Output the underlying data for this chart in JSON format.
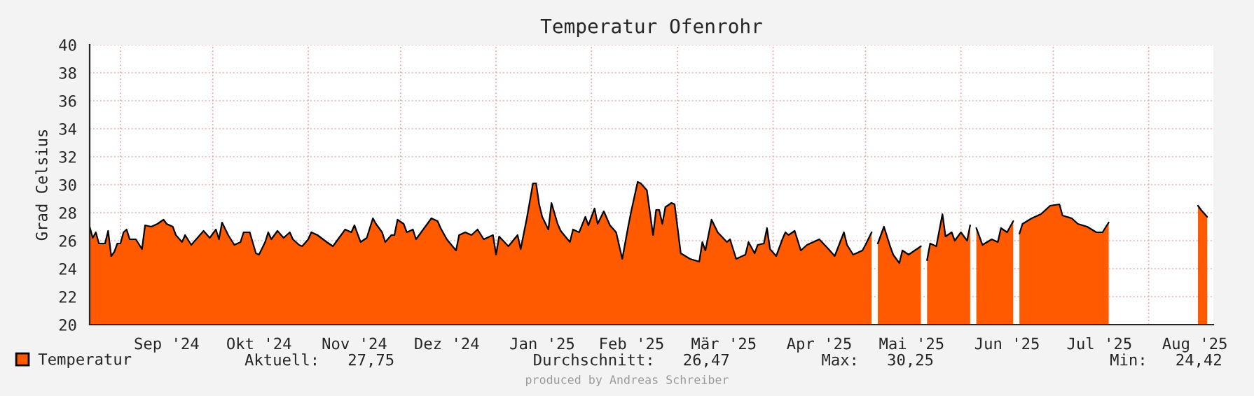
{
  "chart_data": {
    "type": "area",
    "title": "Temperatur Ofenrohr",
    "ylabel": "Grad Celsius",
    "x": [
      "2024-08-22",
      "2024-08-23",
      "2024-08-24",
      "2024-08-25",
      "2024-08-27",
      "2024-08-28",
      "2024-08-29",
      "2024-08-30",
      "2024-08-31",
      "2024-09-01",
      "2024-09-02",
      "2024-09-03",
      "2024-09-04",
      "2024-09-06",
      "2024-09-08",
      "2024-09-09",
      "2024-09-11",
      "2024-09-13",
      "2024-09-15",
      "2024-09-16",
      "2024-09-18",
      "2024-09-19",
      "2024-09-21",
      "2024-09-22",
      "2024-09-24",
      "2024-09-26",
      "2024-09-28",
      "2024-09-30",
      "2024-10-02",
      "2024-10-03",
      "2024-10-04",
      "2024-10-06",
      "2024-10-08",
      "2024-10-10",
      "2024-10-11",
      "2024-10-13",
      "2024-10-15",
      "2024-10-16",
      "2024-10-18",
      "2024-10-19",
      "2024-10-20",
      "2024-10-22",
      "2024-10-24",
      "2024-10-26",
      "2024-10-27",
      "2024-10-29",
      "2024-10-30",
      "2024-11-01",
      "2024-11-02",
      "2024-11-04",
      "2024-11-07",
      "2024-11-09",
      "2024-11-11",
      "2024-11-13",
      "2024-11-15",
      "2024-11-16",
      "2024-11-18",
      "2024-11-20",
      "2024-11-22",
      "2024-11-23",
      "2024-11-25",
      "2024-11-26",
      "2024-11-28",
      "2024-11-29",
      "2024-11-30",
      "2024-12-02",
      "2024-12-03",
      "2024-12-05",
      "2024-12-06",
      "2024-12-08",
      "2024-12-11",
      "2024-12-13",
      "2024-12-14",
      "2024-12-16",
      "2024-12-19",
      "2024-12-20",
      "2024-12-22",
      "2024-12-24",
      "2024-12-26",
      "2024-12-28",
      "2024-12-31",
      "2025-01-01",
      "2025-01-02",
      "2025-01-05",
      "2025-01-08",
      "2025-01-09",
      "2025-01-11",
      "2025-01-13",
      "2025-01-14",
      "2025-01-15",
      "2025-01-16",
      "2025-01-18",
      "2025-01-19",
      "2025-01-21",
      "2025-01-22",
      "2025-01-25",
      "2025-01-26",
      "2025-01-28",
      "2025-01-30",
      "2025-01-31",
      "2025-02-02",
      "2025-02-03",
      "2025-02-05",
      "2025-02-07",
      "2025-02-09",
      "2025-02-11",
      "2025-02-13",
      "2025-02-14",
      "2025-02-16",
      "2025-02-17",
      "2025-02-19",
      "2025-02-21",
      "2025-02-22",
      "2025-02-23",
      "2025-02-24",
      "2025-02-25",
      "2025-02-27",
      "2025-02-28",
      "2025-03-02",
      "2025-03-05",
      "2025-03-08",
      "2025-03-09",
      "2025-03-10",
      "2025-03-12",
      "2025-03-14",
      "2025-03-17",
      "2025-03-18",
      "2025-03-20",
      "2025-03-23",
      "2025-03-24",
      "2025-03-26",
      "2025-03-27",
      "2025-03-29",
      "2025-03-30",
      "2025-03-31",
      "2025-04-02",
      "2025-04-04",
      "2025-04-05",
      "2025-04-06",
      "2025-04-08",
      "2025-04-10",
      "2025-04-12",
      "2025-04-16",
      "2025-04-19",
      "2025-04-21",
      "2025-04-24",
      "2025-04-25",
      "2025-04-27",
      "2025-04-30",
      "2025-05-01",
      "2025-05-03",
      "2025-05-04",
      "2025-05-05",
      "2025-05-07",
      "2025-05-09",
      "2025-05-10",
      "2025-05-12",
      "2025-05-13",
      "2025-05-15",
      "2025-05-17",
      "2025-05-19",
      "2025-05-20",
      "2025-05-21",
      "2025-05-22",
      "2025-05-24",
      "2025-05-26",
      "2025-05-27",
      "2025-05-29",
      "2025-05-30",
      "2025-06-01",
      "2025-06-03",
      "2025-06-04",
      "2025-06-05",
      "2025-06-06",
      "2025-06-08",
      "2025-06-11",
      "2025-06-13",
      "2025-06-14",
      "2025-06-16",
      "2025-06-18",
      "2025-06-19",
      "2025-06-20",
      "2025-06-21",
      "2025-06-24",
      "2025-06-27",
      "2025-06-30",
      "2025-07-03",
      "2025-07-04",
      "2025-07-07",
      "2025-07-09",
      "2025-07-12",
      "2025-07-15",
      "2025-07-17",
      "2025-07-19",
      "2025-07-21",
      "2025-08-17",
      "2025-08-18",
      "2025-08-20"
    ],
    "series": [
      {
        "name": "Temperatur",
        "color": "#ff5a00",
        "values": [
          27.0,
          26.2,
          26.6,
          25.8,
          25.8,
          26.7,
          24.9,
          25.2,
          25.8,
          25.8,
          26.6,
          26.8,
          26.1,
          26.1,
          25.4,
          27.1,
          27.0,
          27.2,
          27.5,
          27.2,
          27.0,
          26.4,
          25.9,
          26.4,
          25.7,
          26.2,
          26.7,
          26.2,
          26.8,
          26.1,
          27.3,
          26.4,
          25.7,
          25.9,
          26.6,
          26.6,
          25.1,
          25.0,
          25.9,
          26.6,
          26.1,
          26.7,
          26.2,
          26.6,
          26.1,
          25.7,
          25.6,
          26.1,
          26.6,
          26.4,
          25.9,
          25.6,
          26.2,
          26.8,
          26.6,
          27.1,
          25.9,
          26.2,
          27.6,
          27.2,
          26.6,
          25.9,
          26.4,
          26.4,
          27.5,
          27.2,
          26.6,
          26.8,
          26.1,
          26.7,
          27.6,
          27.4,
          26.9,
          26.1,
          25.3,
          26.4,
          26.6,
          26.4,
          26.8,
          26.1,
          26.4,
          25.0,
          26.3,
          25.6,
          26.4,
          25.4,
          27.6,
          30.1,
          30.1,
          28.6,
          27.7,
          26.8,
          28.7,
          27.2,
          26.7,
          25.9,
          26.8,
          26.6,
          27.7,
          27.1,
          28.3,
          27.2,
          28.1,
          27.1,
          26.6,
          24.7,
          27.1,
          28.2,
          30.2,
          30.1,
          29.6,
          26.4,
          28.2,
          28.2,
          27.2,
          28.4,
          28.7,
          28.6,
          25.1,
          24.7,
          24.5,
          25.9,
          25.3,
          27.5,
          26.6,
          25.9,
          26.1,
          24.7,
          25.0,
          25.9,
          25.1,
          25.7,
          25.8,
          26.9,
          25.4,
          24.9,
          26.1,
          26.6,
          26.4,
          26.7,
          25.3,
          25.7,
          26.1,
          25.4,
          24.9,
          26.6,
          25.7,
          25.0,
          25.3,
          25.7,
          26.6,
          null,
          25.8,
          27.0,
          25.6,
          25.0,
          24.4,
          25.3,
          25.0,
          25.3,
          25.6,
          null,
          24.6,
          25.8,
          25.6,
          27.9,
          26.3,
          26.6,
          26.0,
          26.6,
          26.0,
          27.1,
          null,
          26.9,
          25.7,
          26.1,
          25.9,
          26.9,
          26.6,
          27.4,
          null,
          26.5,
          27.2,
          27.6,
          27.9,
          28.5,
          28.6,
          27.8,
          27.6,
          27.2,
          27.0,
          26.6,
          26.6,
          27.3,
          null,
          28.5,
          28.2,
          27.7
        ]
      }
    ],
    "xlim": [
      "2024-08-22",
      "2025-08-22"
    ],
    "xticks": [
      {
        "value": "2024-09-01",
        "label": null
      },
      {
        "value": "2024-09-16",
        "label": "Sep '24"
      },
      {
        "value": "2024-10-01",
        "label": null
      },
      {
        "value": "2024-10-16",
        "label": "Okt '24"
      },
      {
        "value": "2024-11-01",
        "label": null
      },
      {
        "value": "2024-11-16",
        "label": "Nov '24"
      },
      {
        "value": "2024-12-01",
        "label": null
      },
      {
        "value": "2024-12-16",
        "label": "Dez '24"
      },
      {
        "value": "2025-01-01",
        "label": null
      },
      {
        "value": "2025-01-16",
        "label": "Jan '25"
      },
      {
        "value": "2025-02-01",
        "label": null
      },
      {
        "value": "2025-02-14",
        "label": "Feb '25"
      },
      {
        "value": "2025-03-01",
        "label": null
      },
      {
        "value": "2025-03-16",
        "label": "Mär '25"
      },
      {
        "value": "2025-04-01",
        "label": null
      },
      {
        "value": "2025-04-16",
        "label": "Apr '25"
      },
      {
        "value": "2025-05-01",
        "label": null
      },
      {
        "value": "2025-05-16",
        "label": "Mai '25"
      },
      {
        "value": "2025-06-01",
        "label": null
      },
      {
        "value": "2025-06-16",
        "label": "Jun '25"
      },
      {
        "value": "2025-07-01",
        "label": null
      },
      {
        "value": "2025-07-16",
        "label": "Jul '25"
      },
      {
        "value": "2025-08-01",
        "label": null
      },
      {
        "value": "2025-08-16",
        "label": "Aug '25"
      }
    ],
    "ylim": [
      20,
      40
    ],
    "yticks": [
      20,
      22,
      24,
      26,
      28,
      30,
      32,
      34,
      36,
      38,
      40
    ],
    "grid": true,
    "legend": "bottom left",
    "annotations": [
      "Aktuell:   27,75",
      "Durchschnitt:   26,47",
      "Max:   30,25",
      "Min:   24,42",
      "produced by Andreas Schreiber"
    ]
  }
}
